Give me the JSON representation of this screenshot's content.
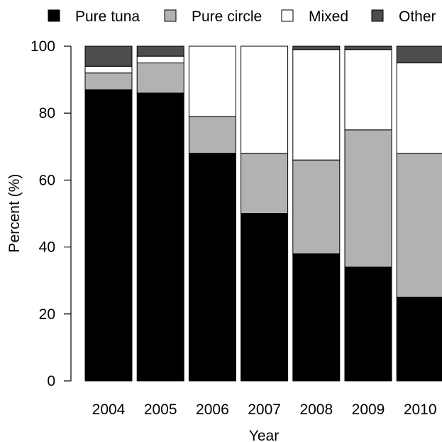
{
  "chart_data": {
    "type": "bar",
    "stacked": true,
    "title": "",
    "xlabel": "Year",
    "ylabel": "Percent (%)",
    "ylim": [
      0,
      100
    ],
    "yticks": [
      0,
      20,
      40,
      60,
      80,
      100
    ],
    "grid": false,
    "legend_position": "top",
    "categories": [
      "2004",
      "2005",
      "2006",
      "2007",
      "2008",
      "2009",
      "2010"
    ],
    "series": [
      {
        "name": "Pure tuna",
        "color": "#000000",
        "values": [
          87,
          86,
          68,
          50,
          38,
          34,
          25
        ]
      },
      {
        "name": "Pure circle",
        "color": "#b2b2b2",
        "values": [
          5,
          9,
          11,
          18,
          28,
          41,
          43
        ]
      },
      {
        "name": "Mixed",
        "color": "#ffffff",
        "values": [
          2,
          2,
          21,
          32,
          33,
          24,
          27
        ]
      },
      {
        "name": "Other",
        "color": "#4d4d4d",
        "values": [
          6,
          3,
          0,
          0,
          1,
          1,
          5
        ]
      }
    ]
  }
}
